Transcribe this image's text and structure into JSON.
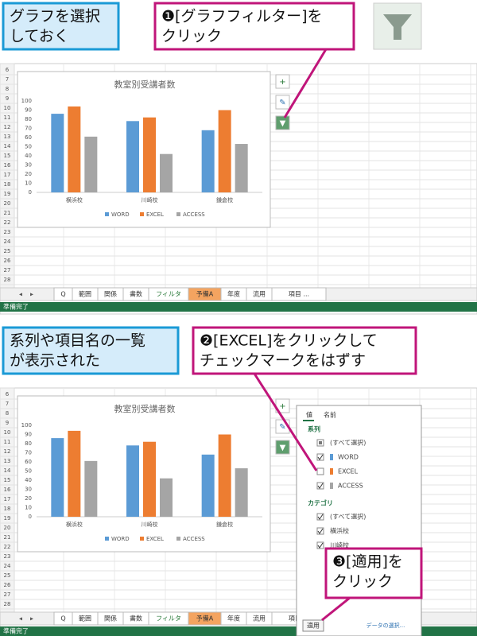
{
  "top": {
    "callout_left": [
      "グラフを選択",
      "しておく"
    ],
    "callout_right": [
      "❶[グラフフィルター]を",
      "クリック"
    ]
  },
  "bottom": {
    "callout_left": [
      "系列や項目名の一覧",
      "が表示された"
    ],
    "callout_right": [
      "❷[EXCEL]をクリックして",
      "チェックマークをはずす"
    ],
    "callout_apply": [
      "❸[適用]を",
      "クリック"
    ]
  },
  "sheet": {
    "rows": [
      6,
      7,
      8,
      9,
      10,
      11,
      12,
      13,
      14,
      15,
      16,
      17,
      18,
      19,
      20,
      21,
      22,
      23,
      24,
      25,
      26,
      27,
      28
    ],
    "tabs": [
      "Q",
      "範囲",
      "関係",
      "書数",
      "フィルタ",
      "予備A",
      "年度",
      "流用",
      "項目 ..."
    ],
    "active_tab": 5,
    "status": "準備完了"
  },
  "chart_data": [
    {
      "type": "bar",
      "title": "教室別受講者数",
      "categories": [
        "横浜校",
        "川崎校",
        "鎌倉校"
      ],
      "series": [
        {
          "name": "WORD",
          "color": "#5b9bd5",
          "values": [
            86,
            78,
            68
          ]
        },
        {
          "name": "EXCEL",
          "color": "#ed7d31",
          "values": [
            94,
            82,
            90
          ]
        },
        {
          "name": "ACCESS",
          "color": "#a5a5a5",
          "values": [
            61,
            42,
            53
          ]
        }
      ],
      "ylim": [
        0,
        100
      ],
      "yticks": [
        0,
        10,
        20,
        30,
        40,
        50,
        60,
        70,
        80,
        90,
        100
      ],
      "grid": false,
      "legend": "bottom"
    },
    {
      "type": "bar",
      "title": "教室別受講者数",
      "categories": [
        "横浜校",
        "川崎校",
        "鎌倉校"
      ],
      "series": [
        {
          "name": "WORD",
          "color": "#5b9bd5",
          "values": [
            86,
            78,
            68
          ]
        },
        {
          "name": "EXCEL",
          "color": "#ed7d31",
          "values": [
            94,
            82,
            90
          ]
        },
        {
          "name": "ACCESS",
          "color": "#a5a5a5",
          "values": [
            61,
            42,
            53
          ]
        }
      ],
      "ylim": [
        0,
        100
      ],
      "yticks": [
        0,
        10,
        20,
        30,
        40,
        50,
        60,
        70,
        80,
        90,
        100
      ],
      "grid": false,
      "legend": "bottom"
    }
  ],
  "filter_pane": {
    "tabs": [
      "値",
      "名前"
    ],
    "series_heading": "系列",
    "series_items": [
      {
        "label": "(すべて選択)",
        "checked": null
      },
      {
        "label": "WORD",
        "checked": true
      },
      {
        "label": "EXCEL",
        "checked": false
      },
      {
        "label": "ACCESS",
        "checked": true
      }
    ],
    "category_heading": "カテゴリ",
    "category_items": [
      {
        "label": "(すべて選択)",
        "checked": true
      },
      {
        "label": "横浜校",
        "checked": true
      },
      {
        "label": "川崎校",
        "checked": true
      }
    ],
    "apply": "適用",
    "select_data": "データの選択..."
  }
}
